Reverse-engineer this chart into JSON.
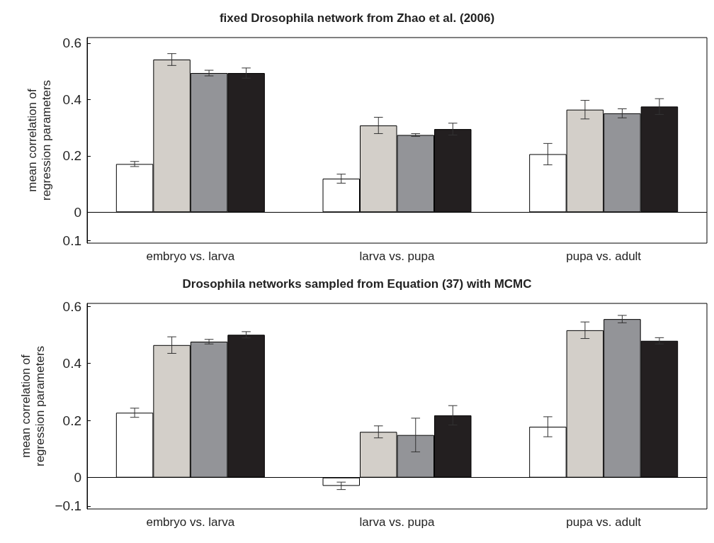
{
  "chart_data": [
    {
      "type": "bar",
      "title": "fixed Drosophila network from Zhao et al. (2006)",
      "ylabel": "mean correlation of\nregression parameters",
      "categories": [
        "embryo vs. larva",
        "larva vs. pupa",
        "pupa vs. adult"
      ],
      "series": [
        {
          "color": "#ffffff",
          "values": [
            0.171,
            0.119,
            0.206
          ],
          "errors": [
            0.009,
            0.016,
            0.038
          ]
        },
        {
          "color": "#d3cfc9",
          "values": [
            0.542,
            0.308,
            0.364
          ],
          "errors": [
            0.021,
            0.029,
            0.033
          ]
        },
        {
          "color": "#939498",
          "values": [
            0.494,
            0.274,
            0.351
          ],
          "errors": [
            0.01,
            0.005,
            0.016
          ]
        },
        {
          "color": "#231f20",
          "values": [
            0.494,
            0.295,
            0.375
          ],
          "errors": [
            0.018,
            0.021,
            0.028
          ]
        }
      ],
      "ylim": [
        -0.11,
        0.62
      ],
      "yticks": [
        {
          "value": -0.1,
          "label": "0.1"
        },
        0,
        0.2,
        0.4,
        0.6
      ],
      "grid": false,
      "ref_lines": [
        {
          "axis": "y",
          "value": 0,
          "color": "#000000"
        }
      ]
    },
    {
      "type": "bar",
      "title": "Drosophila networks sampled from Equation (37) with MCMC",
      "ylabel": "mean correlation of\nregression parameters",
      "categories": [
        "embryo vs. larva",
        "larva vs. pupa",
        "pupa vs. adult"
      ],
      "series": [
        {
          "color": "#ffffff",
          "values": [
            0.227,
            -0.029,
            0.178
          ],
          "errors": [
            0.016,
            0.013,
            0.035
          ]
        },
        {
          "color": "#d3cfc9",
          "values": [
            0.464,
            0.16,
            0.516
          ],
          "errors": [
            0.029,
            0.021,
            0.029
          ]
        },
        {
          "color": "#939498",
          "values": [
            0.476,
            0.149,
            0.555
          ],
          "errors": [
            0.008,
            0.059,
            0.013
          ]
        },
        {
          "color": "#231f20",
          "values": [
            0.5,
            0.218,
            0.479
          ],
          "errors": [
            0.011,
            0.034,
            0.011
          ]
        }
      ],
      "ylim": [
        -0.11,
        0.61
      ],
      "yticks": [
        {
          "value": -0.1,
          "label": "−0.1"
        },
        0,
        0.2,
        0.4,
        0.6
      ],
      "grid": false,
      "ref_lines": [
        {
          "axis": "y",
          "value": 0,
          "color": "#000000"
        }
      ]
    }
  ]
}
